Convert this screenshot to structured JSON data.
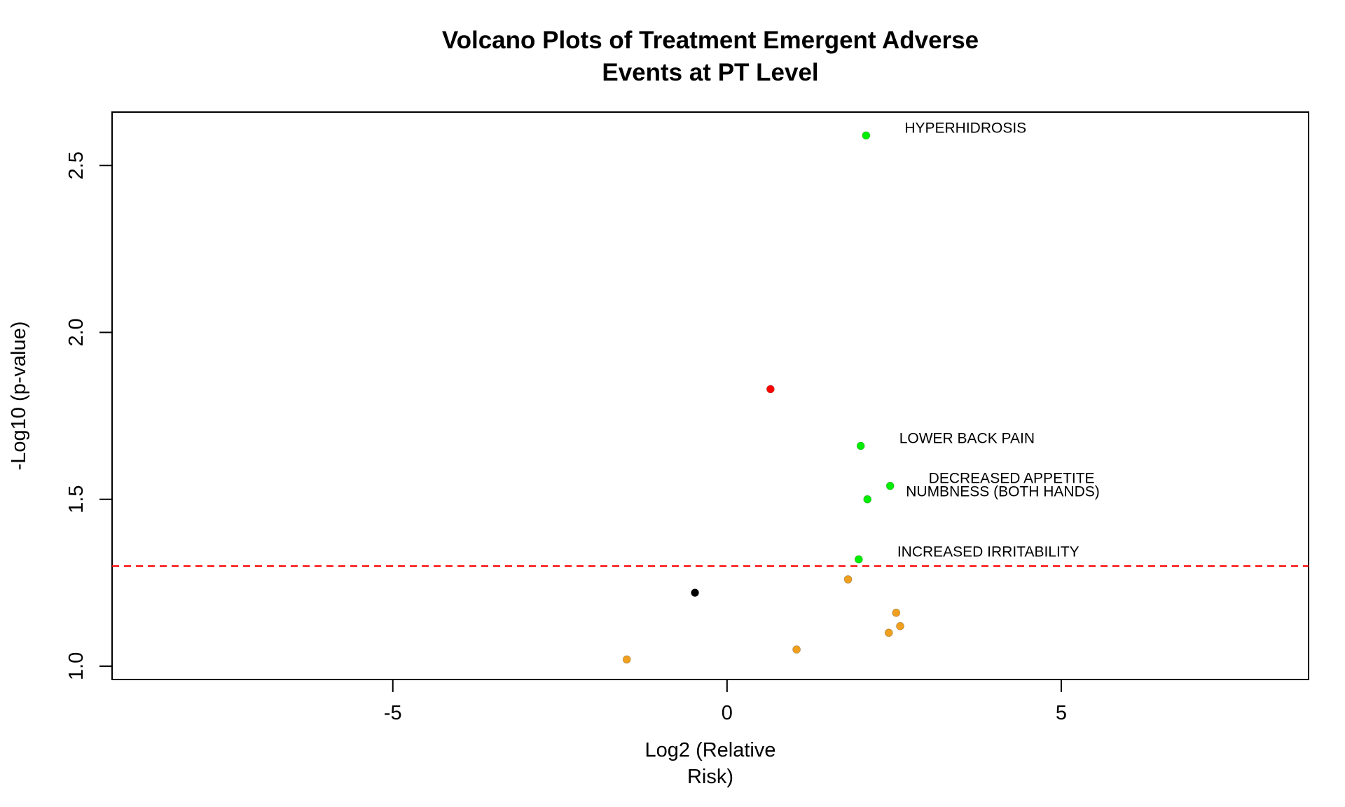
{
  "chart_data": {
    "type": "scatter",
    "title_lines": [
      "Volcano Plots of Treatment Emergent Adverse",
      "Events at PT Level"
    ],
    "xlabel_lines": [
      "Log2 (Relative",
      "Risk)"
    ],
    "ylabel": "-Log10 (p-value)",
    "xlim": [
      -9.2,
      8.7
    ],
    "ylim": [
      0.96,
      2.66
    ],
    "xticks": [
      -5,
      0,
      5
    ],
    "xtick_labels": [
      "-5",
      "0",
      "5"
    ],
    "yticks": [
      1.0,
      1.5,
      2.0,
      2.5
    ],
    "ytick_labels": [
      "1.0",
      "1.5",
      "2.0",
      "2.5"
    ],
    "threshold_y": 1.3,
    "threshold_color": "#ff0000",
    "grid": false,
    "points": [
      {
        "x": 2.08,
        "y": 2.59,
        "color": "#00ee00",
        "label": "HYPERHIDROSIS"
      },
      {
        "x": 0.65,
        "y": 1.83,
        "color": "#ff0000",
        "label": ""
      },
      {
        "x": 2.0,
        "y": 1.66,
        "color": "#00ee00",
        "label": "LOWER BACK PAIN"
      },
      {
        "x": 2.44,
        "y": 1.54,
        "color": "#00ee00",
        "label": "DECREASED APPETITE"
      },
      {
        "x": 2.1,
        "y": 1.5,
        "color": "#00ee00",
        "label": "NUMBNESS (BOTH HANDS)"
      },
      {
        "x": 1.97,
        "y": 1.32,
        "color": "#00ee00",
        "label": "INCREASED IRRITABILITY"
      },
      {
        "x": 1.81,
        "y": 1.26,
        "color": "#f0a01e",
        "label": ""
      },
      {
        "x": -0.48,
        "y": 1.22,
        "color": "#000000",
        "label": ""
      },
      {
        "x": 2.53,
        "y": 1.16,
        "color": "#f0a01e",
        "label": ""
      },
      {
        "x": 2.59,
        "y": 1.12,
        "color": "#f0a01e",
        "label": ""
      },
      {
        "x": 2.42,
        "y": 1.1,
        "color": "#f0a01e",
        "label": ""
      },
      {
        "x": 1.04,
        "y": 1.05,
        "color": "#f0a01e",
        "label": ""
      },
      {
        "x": -1.5,
        "y": 1.02,
        "color": "#f0a01e",
        "label": ""
      }
    ]
  }
}
